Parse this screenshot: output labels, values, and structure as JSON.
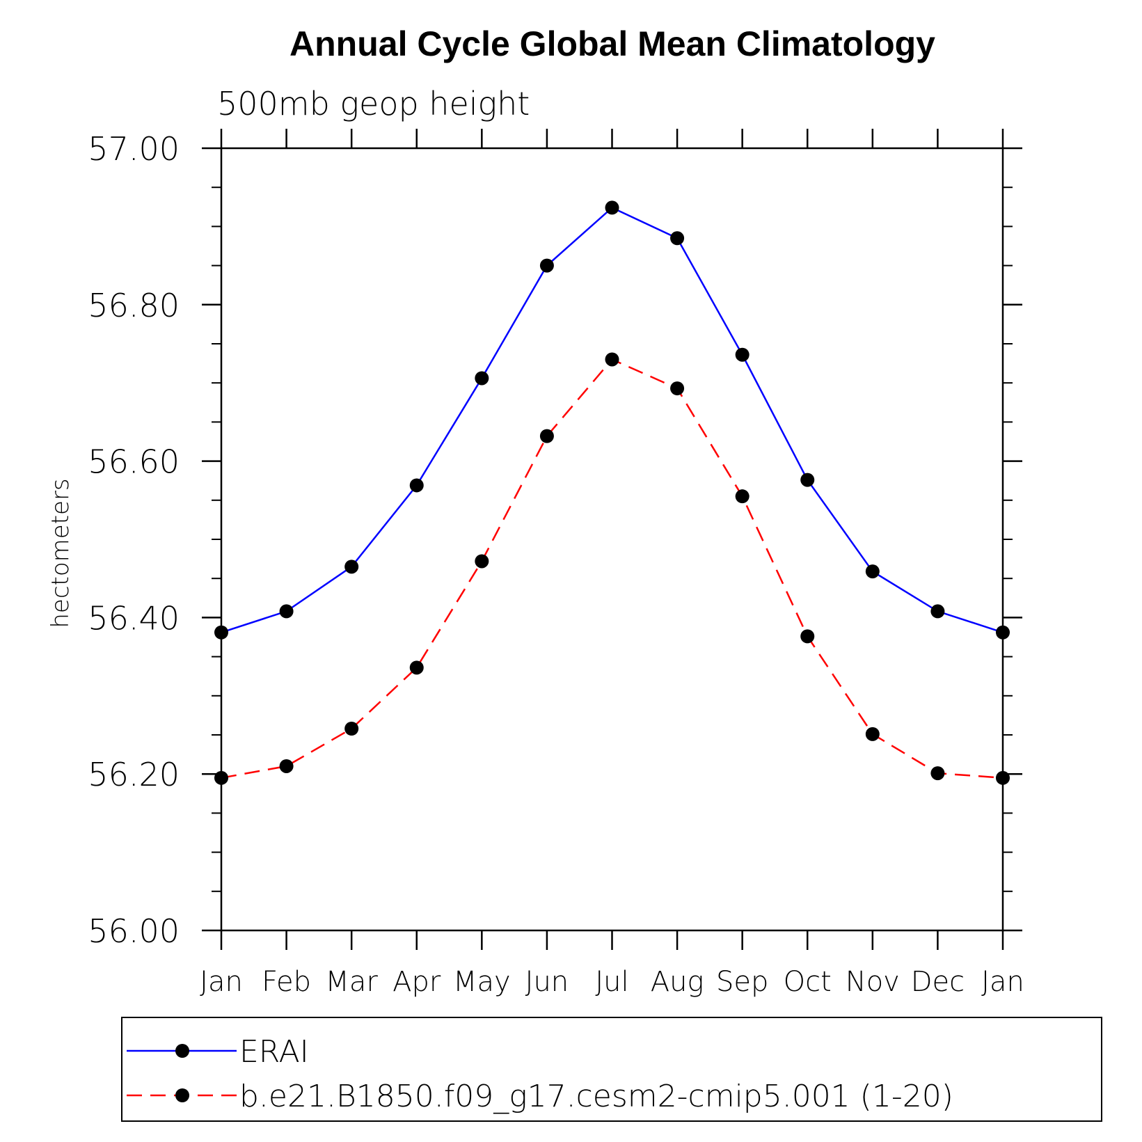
{
  "chart_data": {
    "type": "line",
    "title": "Annual Cycle Global Mean Climatology",
    "subtitle": "500mb geop height",
    "xlabel": "",
    "ylabel": "hectometers",
    "categories": [
      "Jan",
      "Feb",
      "Mar",
      "Apr",
      "May",
      "Jun",
      "Jul",
      "Aug",
      "Sep",
      "Oct",
      "Nov",
      "Dec",
      "Jan"
    ],
    "ylim": [
      56.0,
      57.0
    ],
    "yticks": [
      "56.00",
      "56.20",
      "56.40",
      "56.60",
      "56.80",
      "57.00"
    ],
    "y_tick_values": [
      56.0,
      56.2,
      56.4,
      56.6,
      56.8,
      57.0
    ],
    "y_minor_step": 0.05,
    "grid": false,
    "legend_position": "bottom",
    "series": [
      {
        "name": "ERAI",
        "color": "#0000ff",
        "line_style": "solid",
        "marker": "filled-circle",
        "values": [
          56.381,
          56.408,
          56.465,
          56.569,
          56.706,
          56.85,
          56.924,
          56.885,
          56.736,
          56.576,
          56.459,
          56.408,
          56.381
        ]
      },
      {
        "name": "b.e21.B1850.f09_g17.cesm2-cmip5.001 (1-20)",
        "color": "#ff0000",
        "line_style": "dashed",
        "marker": "filled-circle",
        "values": [
          56.195,
          56.21,
          56.258,
          56.336,
          56.472,
          56.632,
          56.73,
          56.693,
          56.555,
          56.376,
          56.251,
          56.201,
          56.195
        ]
      }
    ]
  }
}
